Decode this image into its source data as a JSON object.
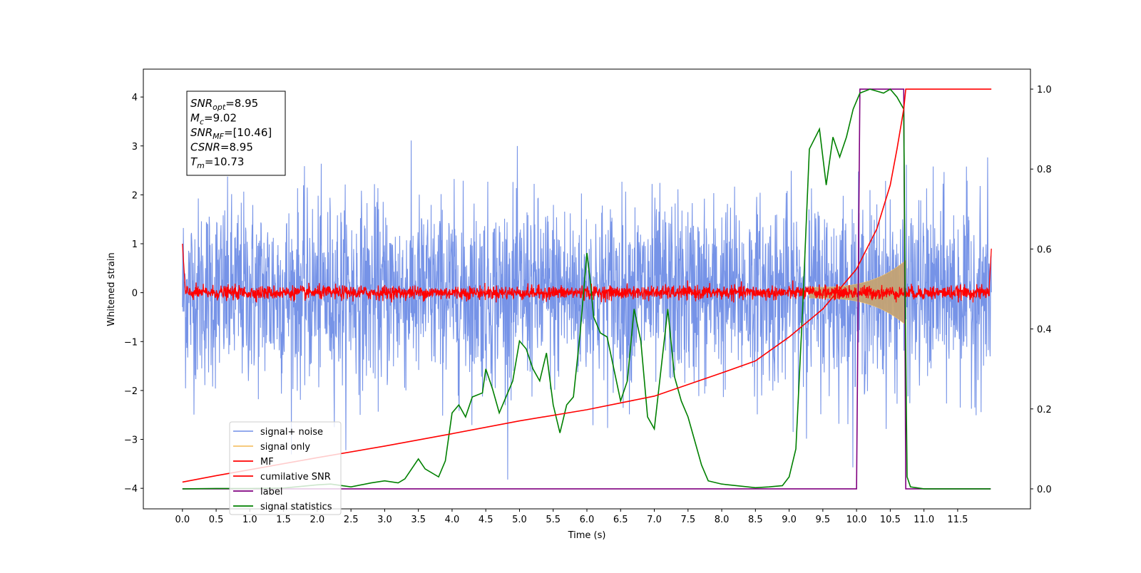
{
  "chart_data": {
    "type": "line",
    "xlabel": "Time (s)",
    "ylabel": "Whitened strain",
    "xlim": [
      -0.58,
      12.58
    ],
    "ylim": [
      -4.42,
      4.57
    ],
    "y2lim": [
      -0.05,
      1.05
    ],
    "xticks": [
      0.0,
      0.5,
      1.0,
      1.5,
      2.0,
      2.5,
      3.0,
      3.5,
      4.0,
      4.5,
      5.0,
      5.5,
      6.0,
      6.5,
      7.0,
      7.5,
      8.0,
      8.5,
      9.0,
      9.5,
      10.0,
      10.5,
      11.0,
      11.5
    ],
    "xtick_labels": [
      "0.0",
      "0.5",
      "1.0",
      "1.5",
      "2.0",
      "2.5",
      "3.0",
      "3.5",
      "4.0",
      "4.5",
      "5.0",
      "5.5",
      "6.0",
      "6.5",
      "7.0",
      "7.5",
      "8.0",
      "8.5",
      "9.0",
      "9.5",
      "10.0",
      "10.5",
      "11.0",
      "11.5"
    ],
    "yticks": [
      -4,
      -3,
      -2,
      -1,
      0,
      1,
      2,
      3,
      4
    ],
    "ytick_labels": [
      "−4",
      "−3",
      "−2",
      "−1",
      "0",
      "1",
      "2",
      "3",
      "4"
    ],
    "y2ticks": [
      0.0,
      0.2,
      0.4,
      0.6,
      0.8,
      1.0
    ],
    "y2tick_labels": [
      "0.0",
      "0.2",
      "0.4",
      "0.6",
      "0.8",
      "1.0"
    ],
    "grid": false,
    "legend_position": "lower-left",
    "duration": 12.0,
    "merger_time": 10.73,
    "noise_std": 0.95,
    "noise_peak": 4.15,
    "series": [
      {
        "name": "signal+ noise",
        "color": "#6f8de6",
        "axis": "left"
      },
      {
        "name": "signal only",
        "color": "#f4c36b",
        "axis": "left"
      },
      {
        "name": "MF",
        "color": "#ff0000",
        "axis": "left"
      },
      {
        "name": "cumilative SNR",
        "color": "#ff0000",
        "axis": "right",
        "points": [
          [
            0.0,
            0.017
          ],
          [
            0.5,
            0.033
          ],
          [
            1.0,
            0.048
          ],
          [
            2.0,
            0.078
          ],
          [
            3.0,
            0.107
          ],
          [
            4.0,
            0.138
          ],
          [
            5.0,
            0.17
          ],
          [
            6.0,
            0.198
          ],
          [
            7.0,
            0.232
          ],
          [
            8.0,
            0.29
          ],
          [
            8.5,
            0.32
          ],
          [
            9.0,
            0.38
          ],
          [
            9.5,
            0.45
          ],
          [
            10.0,
            0.55
          ],
          [
            10.3,
            0.65
          ],
          [
            10.5,
            0.76
          ],
          [
            10.6,
            0.85
          ],
          [
            10.7,
            0.95
          ],
          [
            10.73,
            1.0
          ],
          [
            12.0,
            1.0
          ]
        ]
      },
      {
        "name": "label",
        "color": "#800080",
        "axis": "right",
        "points": [
          [
            0.0,
            0.0
          ],
          [
            10.0,
            0.0
          ],
          [
            10.05,
            1.0
          ],
          [
            10.7,
            1.0
          ],
          [
            10.73,
            0.0
          ],
          [
            11.99,
            0.0
          ]
        ]
      },
      {
        "name": "signal statistics",
        "color": "#008000",
        "axis": "right",
        "points": [
          [
            0.0,
            0.0
          ],
          [
            0.5,
            0.001
          ],
          [
            1.0,
            0.001
          ],
          [
            1.5,
            0.002
          ],
          [
            2.0,
            0.01
          ],
          [
            2.2,
            0.012
          ],
          [
            2.5,
            0.005
          ],
          [
            2.8,
            0.015
          ],
          [
            3.0,
            0.02
          ],
          [
            3.2,
            0.015
          ],
          [
            3.3,
            0.025
          ],
          [
            3.5,
            0.075
          ],
          [
            3.6,
            0.05
          ],
          [
            3.8,
            0.03
          ],
          [
            3.9,
            0.07
          ],
          [
            4.0,
            0.19
          ],
          [
            4.1,
            0.21
          ],
          [
            4.2,
            0.18
          ],
          [
            4.3,
            0.23
          ],
          [
            4.45,
            0.24
          ],
          [
            4.5,
            0.3
          ],
          [
            4.6,
            0.25
          ],
          [
            4.7,
            0.19
          ],
          [
            4.8,
            0.23
          ],
          [
            4.9,
            0.27
          ],
          [
            5.0,
            0.37
          ],
          [
            5.1,
            0.35
          ],
          [
            5.2,
            0.3
          ],
          [
            5.3,
            0.27
          ],
          [
            5.4,
            0.34
          ],
          [
            5.5,
            0.21
          ],
          [
            5.6,
            0.14
          ],
          [
            5.7,
            0.21
          ],
          [
            5.8,
            0.23
          ],
          [
            5.9,
            0.39
          ],
          [
            6.0,
            0.59
          ],
          [
            6.05,
            0.52
          ],
          [
            6.1,
            0.43
          ],
          [
            6.2,
            0.39
          ],
          [
            6.3,
            0.38
          ],
          [
            6.4,
            0.3
          ],
          [
            6.5,
            0.22
          ],
          [
            6.6,
            0.27
          ],
          [
            6.7,
            0.45
          ],
          [
            6.8,
            0.37
          ],
          [
            6.9,
            0.18
          ],
          [
            7.0,
            0.15
          ],
          [
            7.1,
            0.3
          ],
          [
            7.2,
            0.45
          ],
          [
            7.3,
            0.28
          ],
          [
            7.4,
            0.22
          ],
          [
            7.5,
            0.18
          ],
          [
            7.6,
            0.12
          ],
          [
            7.7,
            0.06
          ],
          [
            7.8,
            0.02
          ],
          [
            8.0,
            0.012
          ],
          [
            8.5,
            0.003
          ],
          [
            8.7,
            0.005
          ],
          [
            8.9,
            0.008
          ],
          [
            9.0,
            0.03
          ],
          [
            9.1,
            0.1
          ],
          [
            9.2,
            0.45
          ],
          [
            9.3,
            0.85
          ],
          [
            9.45,
            0.9
          ],
          [
            9.55,
            0.76
          ],
          [
            9.65,
            0.88
          ],
          [
            9.75,
            0.83
          ],
          [
            9.85,
            0.88
          ],
          [
            9.95,
            0.95
          ],
          [
            10.05,
            0.99
          ],
          [
            10.2,
            1.0
          ],
          [
            10.4,
            0.99
          ],
          [
            10.5,
            1.0
          ],
          [
            10.6,
            0.98
          ],
          [
            10.7,
            0.95
          ],
          [
            10.72,
            0.5
          ],
          [
            10.75,
            0.03
          ],
          [
            10.8,
            0.005
          ],
          [
            11.0,
            0.0
          ],
          [
            11.99,
            0.0
          ]
        ]
      }
    ]
  },
  "annotation": {
    "lines": [
      {
        "var": "SNR",
        "sub": "opt",
        "value": "=8.95"
      },
      {
        "var": "M",
        "sub": "c",
        "value": "=9.02"
      },
      {
        "var": "SNR",
        "sub": "MF",
        "value": "=[10.46]"
      },
      {
        "var": "CSNR",
        "sub": "",
        "value": "=8.95"
      },
      {
        "var": "T",
        "sub": "m",
        "value": "=10.73"
      }
    ]
  }
}
